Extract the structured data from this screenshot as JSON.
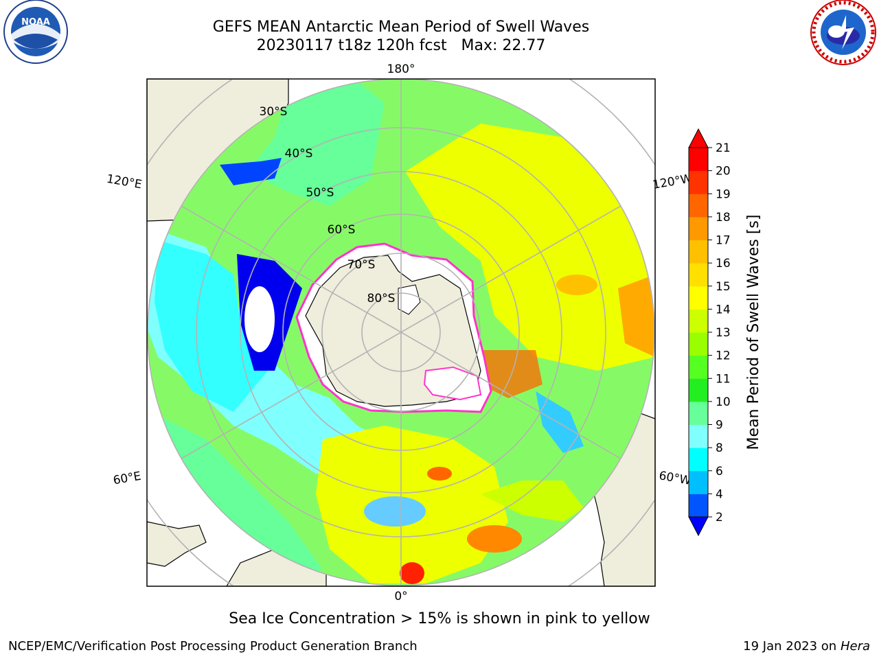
{
  "title": "GEFS MEAN Antarctic Mean Period of Swell Waves",
  "subtitle": "20230117 t18z 120h fcst   Max: 22.77",
  "ice_note": "Sea Ice Concentration > 15% is shown in pink to yellow",
  "footer_left": "NCEP/EMC/Verification Post Processing Product Generation Branch",
  "footer_right_prefix": "19 Jan 2023 on ",
  "footer_right_host": "Hera",
  "logos": {
    "left": "noaa-logo",
    "right": "nws-logo",
    "noaa_text": "NOAA"
  },
  "longitude_labels": {
    "top": "180°",
    "bottom": "0°",
    "upper_left": "120°E",
    "upper_right": "120°W",
    "lower_left": "60°E",
    "lower_right": "60°W"
  },
  "latitude_labels": [
    "30°S",
    "40°S",
    "50°S",
    "60°S",
    "70°S",
    "80°S"
  ],
  "colorbar": {
    "label": "Mean Period of Swell Waves [s]",
    "ticks": [
      "2",
      "4",
      "6",
      "8",
      "9",
      "10",
      "11",
      "12",
      "13",
      "14",
      "15",
      "16",
      "17",
      "18",
      "19",
      "20",
      "21"
    ],
    "colors": [
      "#0000ff",
      "#0055ff",
      "#00bfff",
      "#00ffff",
      "#80ffff",
      "#66ff99",
      "#22ee22",
      "#55ff22",
      "#99ff00",
      "#ccff00",
      "#ffff00",
      "#ffe000",
      "#ffc000",
      "#ff9900",
      "#ff6600",
      "#ff3300",
      "#ff0000"
    ],
    "extend": "both"
  },
  "colors": {
    "land": "#efeddc",
    "graticule": "#b3b3b3",
    "ice_edge": "#ff33cc",
    "ice_inner": "#ffffff"
  }
}
